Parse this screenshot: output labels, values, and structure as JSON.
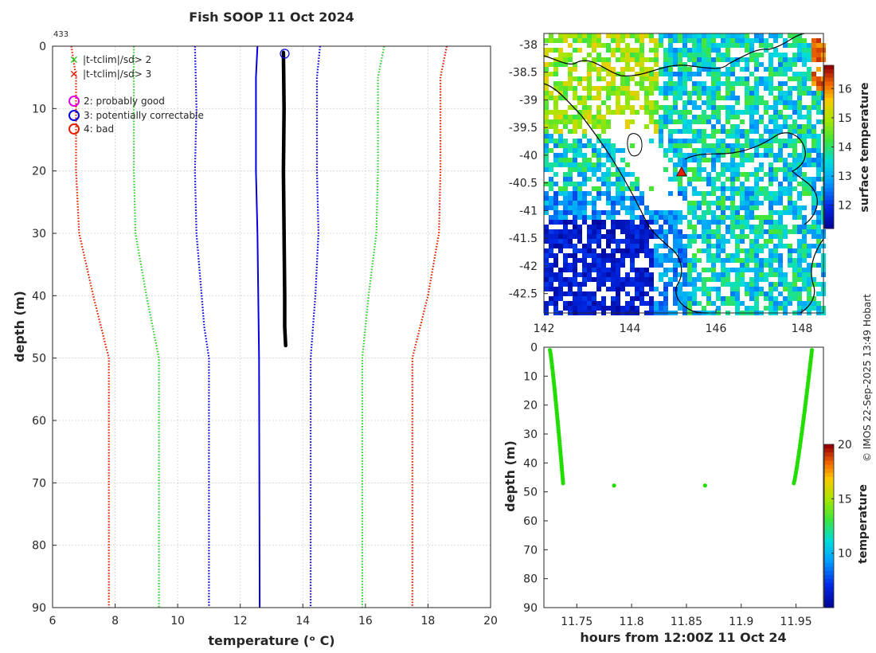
{
  "figure": {
    "title": "Fish SOOP 11 Oct 2024",
    "credit": "© IMOS 22-Sep-2025 13:49 Hobart",
    "profile_id": "433"
  },
  "legend": {
    "flag_sd2": "|t-tclim|/sd> 2",
    "flag_sd3": "|t-tclim|/sd> 3",
    "qc2": "2: probably good",
    "qc3": "3: potentially correctable",
    "qc4": "4: bad"
  },
  "colors": {
    "clim_mean": "#0000e0",
    "clim_sd1": "#0000e0",
    "clim_sd2": "#30d030",
    "clim_sd3": "#e02000",
    "profile": "#000000",
    "land": "#ffffff",
    "coast": "#000000"
  },
  "chart_data": [
    {
      "type": "line",
      "title": "Fish SOOP 11 Oct 2024",
      "xlabel": "temperature (ᵒ C)",
      "ylabel": "depth (m)",
      "xlim": [
        6,
        20
      ],
      "ylim": [
        0,
        90
      ],
      "y_reversed": true,
      "xticks": [
        6,
        8,
        10,
        12,
        14,
        16,
        18,
        20
      ],
      "yticks": [
        0,
        10,
        20,
        30,
        40,
        50,
        60,
        70,
        80,
        90
      ],
      "grid": true,
      "series": [
        {
          "name": "climatology mean",
          "style": "solid",
          "color": "#0000e0",
          "points": [
            [
              12.55,
              0
            ],
            [
              12.5,
              5
            ],
            [
              12.5,
              20
            ],
            [
              12.55,
              30
            ],
            [
              12.6,
              50
            ],
            [
              12.62,
              90
            ]
          ]
        },
        {
          "name": "mean - 1 sd",
          "style": "dotted",
          "color": "#0000e0",
          "points": [
            [
              10.55,
              0
            ],
            [
              10.6,
              10
            ],
            [
              10.55,
              20
            ],
            [
              10.6,
              30
            ],
            [
              10.85,
              45
            ],
            [
              11.0,
              50
            ],
            [
              11.0,
              90
            ]
          ]
        },
        {
          "name": "mean + 1 sd",
          "style": "dotted",
          "color": "#0000e0",
          "points": [
            [
              14.55,
              0
            ],
            [
              14.45,
              5
            ],
            [
              14.45,
              20
            ],
            [
              14.5,
              30
            ],
            [
              14.4,
              40
            ],
            [
              14.25,
              50
            ],
            [
              14.25,
              90
            ]
          ]
        },
        {
          "name": "mean - 2 sd",
          "style": "dotted",
          "color": "#30d030",
          "points": [
            [
              8.6,
              0
            ],
            [
              8.6,
              10
            ],
            [
              8.6,
              20
            ],
            [
              8.65,
              30
            ],
            [
              9.0,
              40
            ],
            [
              9.4,
              50
            ],
            [
              9.4,
              90
            ]
          ]
        },
        {
          "name": "mean + 2 sd",
          "style": "dotted",
          "color": "#30d030",
          "points": [
            [
              16.6,
              0
            ],
            [
              16.4,
              5
            ],
            [
              16.4,
              20
            ],
            [
              16.35,
              30
            ],
            [
              16.1,
              40
            ],
            [
              15.9,
              50
            ],
            [
              15.9,
              90
            ]
          ]
        },
        {
          "name": "mean - 3 sd",
          "style": "dotted",
          "color": "#e02000",
          "points": [
            [
              6.6,
              0
            ],
            [
              6.75,
              5
            ],
            [
              6.75,
              20
            ],
            [
              6.85,
              30
            ],
            [
              7.3,
              40
            ],
            [
              7.8,
              50
            ],
            [
              7.8,
              90
            ]
          ]
        },
        {
          "name": "mean + 3 sd",
          "style": "dotted",
          "color": "#e02000",
          "points": [
            [
              18.6,
              0
            ],
            [
              18.4,
              5
            ],
            [
              18.4,
              20
            ],
            [
              18.35,
              30
            ],
            [
              18.0,
              40
            ],
            [
              17.5,
              50
            ],
            [
              17.5,
              90
            ]
          ]
        },
        {
          "name": "observed profile",
          "style": "thick",
          "color": "#000000",
          "points": [
            [
              13.38,
              1
            ],
            [
              13.4,
              10
            ],
            [
              13.38,
              20
            ],
            [
              13.4,
              30
            ],
            [
              13.42,
              40
            ],
            [
              13.42,
              45
            ],
            [
              13.45,
              48
            ]
          ]
        }
      ],
      "qc_marker": {
        "label": "3: potentially correctable",
        "x": 13.42,
        "y": 1.2
      }
    },
    {
      "type": "heatmap",
      "xlabel": "",
      "ylabel": "",
      "xlim": [
        142,
        148.5
      ],
      "ylim": [
        -42.85,
        -37.8
      ],
      "xticks": [
        142,
        144,
        146,
        148
      ],
      "yticks": [
        -38,
        -38.5,
        -39,
        -39.5,
        -40,
        -40.5,
        -41,
        -41.5,
        -42,
        -42.5
      ],
      "colorbar": {
        "label": "surface temperature",
        "min": 11.2,
        "max": 16.8,
        "ticks": [
          12,
          13,
          14,
          15,
          16
        ]
      },
      "marker": {
        "type": "triangle",
        "lon": 145.2,
        "lat": -40.3
      }
    },
    {
      "type": "scatter",
      "xlabel": "hours from 12:00Z 11 Oct 24",
      "ylabel": "depth (m)",
      "xlim": [
        11.72,
        11.975
      ],
      "ylim": [
        0,
        90
      ],
      "y_reversed": true,
      "xticks": [
        11.75,
        11.8,
        11.85,
        11.9,
        11.95
      ],
      "yticks": [
        0,
        10,
        20,
        30,
        40,
        50,
        60,
        70,
        80,
        90
      ],
      "colorbar": {
        "label": "temperature",
        "min": 5,
        "max": 20,
        "ticks": [
          10,
          15,
          20
        ]
      },
      "descent": {
        "t_start": 11.7255,
        "t_end": 11.7375,
        "d_start": 1,
        "d_end": 47
      },
      "ascent": {
        "t_start": 11.948,
        "t_end": 11.9645,
        "d_start": 47,
        "d_end": 1
      },
      "isolated": [
        [
          11.784,
          47.8
        ],
        [
          11.867,
          47.8
        ]
      ],
      "point_color": "#22dd00"
    }
  ]
}
